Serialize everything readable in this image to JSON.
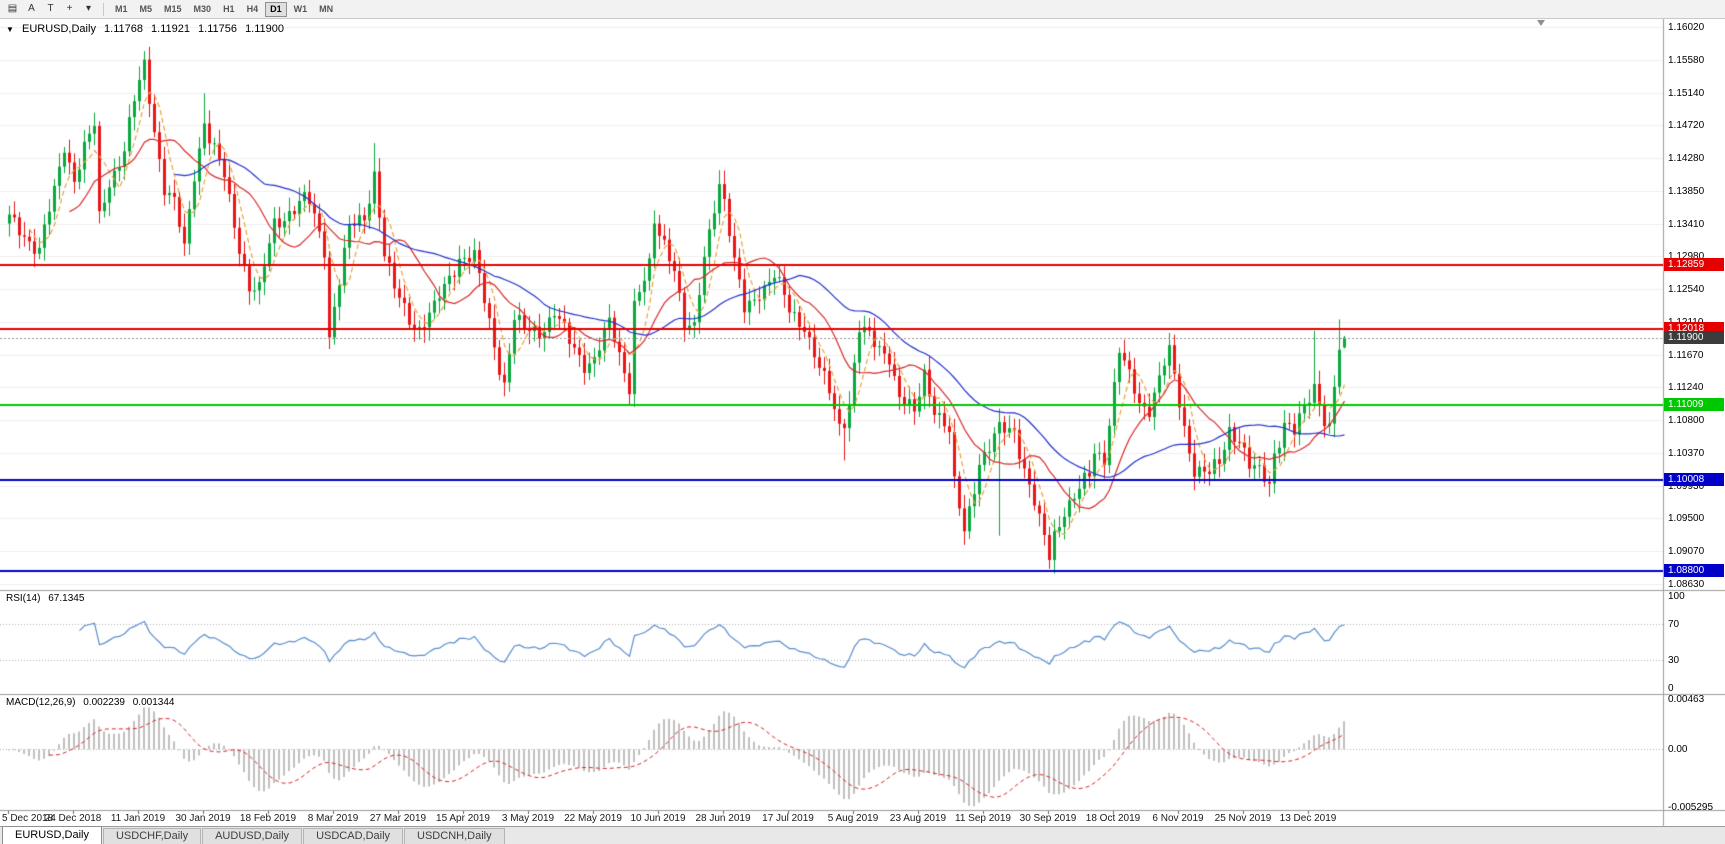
{
  "toolbar": {
    "tools": [
      {
        "name": "chart-menu-icon",
        "glyph": "▤"
      },
      {
        "name": "a-tool-button",
        "glyph": "A"
      },
      {
        "name": "text-tool-button",
        "glyph": "T"
      },
      {
        "name": "crosshair-tool-button",
        "glyph": "+"
      },
      {
        "name": "tools-dropdown-caret",
        "glyph": "▾"
      }
    ],
    "timeframes": [
      "M1",
      "M5",
      "M15",
      "M30",
      "H1",
      "H4",
      "D1",
      "W1",
      "MN"
    ],
    "active_timeframe": "D1"
  },
  "chart_title": {
    "caret": "▼",
    "symbol": "EURUSD,Daily",
    "open": "1.11768",
    "high": "1.11921",
    "low": "1.11756",
    "close": "1.11900"
  },
  "rsi": {
    "label": "RSI(14)",
    "value": "67.1345",
    "axis_ticks": [
      {
        "label": "100",
        "value": 100
      },
      {
        "label": "70",
        "value": 70
      },
      {
        "label": "30",
        "value": 30
      },
      {
        "label": "0",
        "value": 0
      }
    ],
    "level_lines": [
      70,
      30
    ],
    "line_color": "#5b8fd0"
  },
  "macd": {
    "label": "MACD(12,26,9)",
    "main_value": "0.002239",
    "signal_value": "0.001344",
    "axis_ticks": [
      {
        "label": "0.00463",
        "value": 0.00463
      },
      {
        "label": "0.00",
        "value": 0
      },
      {
        "label": "-0.005295",
        "value": -0.005295
      }
    ],
    "histogram_color": "#c0c0c0",
    "signal_color": "#d92b2b"
  },
  "tabs": {
    "items": [
      {
        "label": "EURUSD,Daily",
        "active": true
      },
      {
        "label": "USDCHF,Daily",
        "active": false
      },
      {
        "label": "AUDUSD,Daily",
        "active": false
      },
      {
        "label": "USDCAD,Daily",
        "active": false
      },
      {
        "label": "USDCNH,Daily",
        "active": false
      }
    ]
  },
  "chart_data": {
    "type": "candlestick",
    "title": "EURUSD,Daily",
    "symbol": "EURUSD",
    "timeframe": "Daily",
    "current_bar": {
      "open": "1.11768",
      "high": "1.11921",
      "low": "1.11756",
      "close": "1.11900"
    },
    "price_axis_ticks": [
      "1.16020",
      "1.15580",
      "1.15140",
      "1.14720",
      "1.14280",
      "1.13850",
      "1.13410",
      "1.12980",
      "1.12540",
      "1.12110",
      "1.11670",
      "1.11240",
      "1.10800",
      "1.10370",
      "1.09930",
      "1.09500",
      "1.09070",
      "1.08630"
    ],
    "x_labels": [
      {
        "bar": 0,
        "text": "5 Dec 2018"
      },
      {
        "bar": 13,
        "text": "24 Dec 2018"
      },
      {
        "bar": 26,
        "text": "11 Jan 2019"
      },
      {
        "bar": 39,
        "text": "30 Jan 2019"
      },
      {
        "bar": 52,
        "text": "18 Feb 2019"
      },
      {
        "bar": 65,
        "text": "8 Mar 2019"
      },
      {
        "bar": 78,
        "text": "27 Mar 2019"
      },
      {
        "bar": 91,
        "text": "15 Apr 2019"
      },
      {
        "bar": 104,
        "text": "3 May 2019"
      },
      {
        "bar": 117,
        "text": "22 May 2019"
      },
      {
        "bar": 130,
        "text": "10 Jun 2019"
      },
      {
        "bar": 143,
        "text": "28 Jun 2019"
      },
      {
        "bar": 156,
        "text": "17 Jul 2019"
      },
      {
        "bar": 169,
        "text": "5 Aug 2019"
      },
      {
        "bar": 182,
        "text": "23 Aug 2019"
      },
      {
        "bar": 195,
        "text": "11 Sep 2019"
      },
      {
        "bar": 208,
        "text": "30 Sep 2019"
      },
      {
        "bar": 221,
        "text": "18 Oct 2019"
      },
      {
        "bar": 234,
        "text": "6 Nov 2019"
      },
      {
        "bar": 247,
        "text": "25 Nov 2019"
      },
      {
        "bar": 260,
        "text": "13 Dec 2019"
      }
    ],
    "levels": [
      {
        "price": 1.12859,
        "label": "1.12859",
        "color": "#e60000"
      },
      {
        "price": 1.12018,
        "label": "1.12018",
        "color": "#e60000"
      },
      {
        "price": 1.11009,
        "label": "1.11009",
        "color": "#00c800"
      },
      {
        "price": 1.10008,
        "label": "1.10008",
        "color": "#0000c8"
      },
      {
        "price": 1.088,
        "label": "1.08800",
        "color": "#0000c8"
      }
    ],
    "current_price": {
      "price": 1.119,
      "label": "1.11900",
      "line_color": "#9a9a9a",
      "tag_bg": "#3c3c3c"
    },
    "candle_colors": {
      "up": "#0aa83e",
      "down": "#e81717"
    },
    "moving_averages": [
      {
        "period_estimate": 5,
        "color": "#e8a33d",
        "style": "dashed"
      },
      {
        "period_estimate": 13,
        "color": "#d92b2b",
        "style": "solid"
      },
      {
        "period_estimate": 34,
        "color": "#2433cc",
        "style": "solid"
      }
    ],
    "indicators": [
      {
        "name": "RSI",
        "period": 14,
        "current": 67.1345
      },
      {
        "name": "MACD",
        "fast": 12,
        "slow": 26,
        "signal": 9,
        "current_main": 0.002239,
        "current_signal": 0.001344
      }
    ],
    "price_path_anchors": [
      [
        0,
        1.1345
      ],
      [
        3,
        1.133
      ],
      [
        6,
        1.1305
      ],
      [
        9,
        1.138
      ],
      [
        11,
        1.1447
      ],
      [
        13,
        1.1404
      ],
      [
        15,
        1.144
      ],
      [
        17,
        1.1467
      ],
      [
        18,
        1.1346
      ],
      [
        20,
        1.14
      ],
      [
        23,
        1.144
      ],
      [
        25,
        1.15
      ],
      [
        27,
        1.155
      ],
      [
        29,
        1.147
      ],
      [
        31,
        1.139
      ],
      [
        33,
        1.1365
      ],
      [
        35,
        1.1305
      ],
      [
        37,
        1.141
      ],
      [
        39,
        1.148
      ],
      [
        40,
        1.1456
      ],
      [
        43,
        1.14
      ],
      [
        45,
        1.134
      ],
      [
        48,
        1.126
      ],
      [
        50,
        1.125
      ],
      [
        53,
        1.134
      ],
      [
        56,
        1.136
      ],
      [
        59,
        1.137
      ],
      [
        60,
        1.1365
      ],
      [
        63,
        1.131
      ],
      [
        64,
        1.1195
      ],
      [
        65,
        1.1235
      ],
      [
        68,
        1.133
      ],
      [
        71,
        1.135
      ],
      [
        73,
        1.1412
      ],
      [
        75,
        1.13
      ],
      [
        77,
        1.125
      ],
      [
        80,
        1.1218
      ],
      [
        82,
        1.1205
      ],
      [
        85,
        1.1225
      ],
      [
        88,
        1.127
      ],
      [
        90,
        1.13
      ],
      [
        93,
        1.1295
      ],
      [
        95,
        1.1235
      ],
      [
        98,
        1.1155
      ],
      [
        99,
        1.1132
      ],
      [
        101,
        1.1215
      ],
      [
        103,
        1.1195
      ],
      [
        106,
        1.12
      ],
      [
        109,
        1.1225
      ],
      [
        112,
        1.118
      ],
      [
        115,
        1.1158
      ],
      [
        117,
        1.1165
      ],
      [
        120,
        1.1205
      ],
      [
        122,
        1.1165
      ],
      [
        124,
        1.113
      ],
      [
        125,
        1.124
      ],
      [
        128,
        1.128
      ],
      [
        129,
        1.1335
      ],
      [
        131,
        1.1315
      ],
      [
        133,
        1.129
      ],
      [
        135,
        1.1207
      ],
      [
        137,
        1.1195
      ],
      [
        139,
        1.1295
      ],
      [
        141,
        1.137
      ],
      [
        142,
        1.14
      ],
      [
        143,
        1.1373
      ],
      [
        145,
        1.1285
      ],
      [
        147,
        1.1225
      ],
      [
        150,
        1.1255
      ],
      [
        153,
        1.127
      ],
      [
        156,
        1.1225
      ],
      [
        159,
        1.121
      ],
      [
        162,
        1.1145
      ],
      [
        164,
        1.1115
      ],
      [
        166,
        1.1075
      ],
      [
        167,
        1.1085
      ],
      [
        168,
        1.1108
      ],
      [
        170,
        1.12
      ],
      [
        173,
        1.118
      ],
      [
        176,
        1.117
      ],
      [
        178,
        1.111
      ],
      [
        181,
        1.1085
      ],
      [
        183,
        1.1145
      ],
      [
        185,
        1.11
      ],
      [
        188,
        1.106
      ],
      [
        189,
        1.099
      ],
      [
        191,
        1.0935
      ],
      [
        194,
        1.1028
      ],
      [
        196,
        1.104
      ],
      [
        198,
        1.1065
      ],
      [
        201,
        1.1072
      ],
      [
        203,
        1.1017
      ],
      [
        206,
        1.0942
      ],
      [
        208,
        1.09
      ],
      [
        209,
        1.0932
      ],
      [
        211,
        1.0965
      ],
      [
        213,
        1.0975
      ],
      [
        216,
        1.1005
      ],
      [
        217,
        1.104
      ],
      [
        219,
        1.1035
      ],
      [
        221,
        1.1125
      ],
      [
        222,
        1.117
      ],
      [
        223,
        1.115
      ],
      [
        226,
        1.1105
      ],
      [
        228,
        1.11
      ],
      [
        231,
        1.1152
      ],
      [
        232,
        1.1166
      ],
      [
        235,
        1.1073
      ],
      [
        237,
        1.1018
      ],
      [
        240,
        1.1005
      ],
      [
        242,
        1.1022
      ],
      [
        244,
        1.1072
      ],
      [
        246,
        1.1058
      ],
      [
        248,
        1.1015
      ],
      [
        250,
        1.1008
      ],
      [
        252,
        1.1
      ],
      [
        253,
        1.104
      ],
      [
        255,
        1.1077
      ],
      [
        257,
        1.106
      ],
      [
        259,
        1.1093
      ],
      [
        261,
        1.113
      ],
      [
        262,
        1.111
      ],
      [
        263,
        1.1085
      ],
      [
        264,
        1.107
      ],
      [
        265,
        1.112
      ],
      [
        266,
        1.117
      ],
      [
        267,
        1.119
      ]
    ],
    "spikes": [
      {
        "i": 27,
        "h": 1.157
      },
      {
        "i": 39,
        "h": 1.1514
      },
      {
        "i": 50,
        "l": 1.1234
      },
      {
        "i": 64,
        "l": 1.1176
      },
      {
        "i": 73,
        "h": 1.1448
      },
      {
        "i": 83,
        "l": 1.1183
      },
      {
        "i": 99,
        "l": 1.1112
      },
      {
        "i": 124,
        "l": 1.1107
      },
      {
        "i": 142,
        "h": 1.1412
      },
      {
        "i": 167,
        "l": 1.1027
      },
      {
        "i": 191,
        "l": 1.0925
      },
      {
        "i": 198,
        "l": 1.0927,
        "h": 1.1087
      },
      {
        "i": 209,
        "l": 1.0879
      },
      {
        "i": 237,
        "l": 1.0989
      },
      {
        "i": 252,
        "l": 1.0981
      },
      {
        "i": 261,
        "h": 1.1199
      },
      {
        "i": 266,
        "h": 1.1214
      }
    ],
    "render_hints": {
      "bars_count": 268,
      "noise_amp1": 0.0007,
      "noise_f1": 2.17,
      "noise_amp2": 0.0009,
      "noise_f2": 0.73,
      "wick_base": 0.0006,
      "wick_var": 0.0012
    }
  }
}
